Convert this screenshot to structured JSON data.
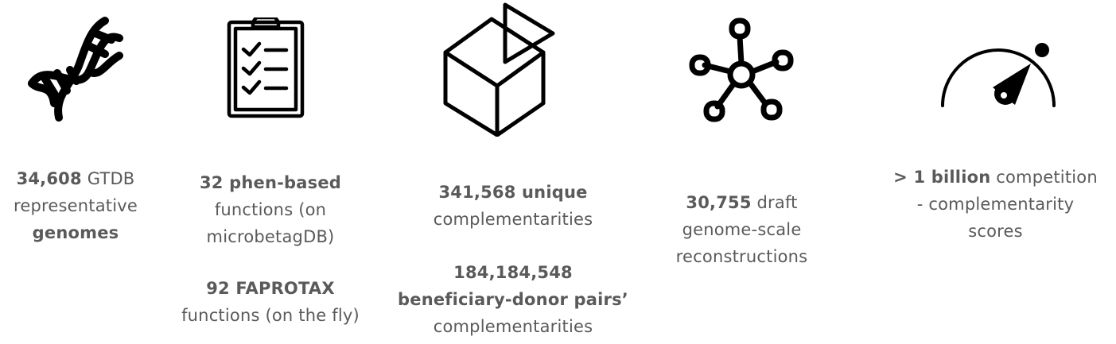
{
  "stats": [
    {
      "icon": "dna-icon",
      "lines": [
        [
          {
            "text": "34,608",
            "bold": true
          },
          {
            "text": " GTDB",
            "bold": false
          }
        ],
        [
          {
            "text": "representative",
            "bold": false
          }
        ],
        [
          {
            "text": "genomes",
            "bold": true
          }
        ]
      ]
    },
    {
      "icon": "clipboard-checklist-icon",
      "lines": [
        [
          {
            "text": "32 phen-based",
            "bold": true
          }
        ],
        [
          {
            "text": "functions (on",
            "bold": false
          }
        ],
        [
          {
            "text": "microbetagDB)",
            "bold": false
          }
        ]
      ],
      "lines_2": [
        [
          {
            "text": "92 FAPROTAX",
            "bold": true
          }
        ],
        [
          {
            "text": "functions (on the fly)",
            "bold": false
          }
        ]
      ]
    },
    {
      "icon": "box-with-triangle-icon",
      "lines": [
        [
          {
            "text": "341,568 unique",
            "bold": true
          }
        ],
        [
          {
            "text": "complementarities",
            "bold": false
          }
        ]
      ],
      "lines_2": [
        [
          {
            "text": "184,184,548",
            "bold": true
          }
        ],
        [
          {
            "text": "beneficiary-donor pairs’",
            "bold": true
          }
        ],
        [
          {
            "text": "complementarities",
            "bold": false
          }
        ]
      ]
    },
    {
      "icon": "network-node-icon",
      "lines": [
        [
          {
            "text": "30,755",
            "bold": true
          },
          {
            "text": " draft",
            "bold": false
          }
        ],
        [
          {
            "text": "genome-scale",
            "bold": false
          }
        ],
        [
          {
            "text": "reconstructions",
            "bold": false
          }
        ]
      ]
    },
    {
      "icon": "speedometer-gauge-icon",
      "lines": [
        [
          {
            "text": "> 1 billion",
            "bold": true
          },
          {
            "text": " competition",
            "bold": false
          }
        ],
        [
          {
            "text": "- complementarity",
            "bold": false
          }
        ],
        [
          {
            "text": "scores",
            "bold": false
          }
        ]
      ]
    }
  ]
}
